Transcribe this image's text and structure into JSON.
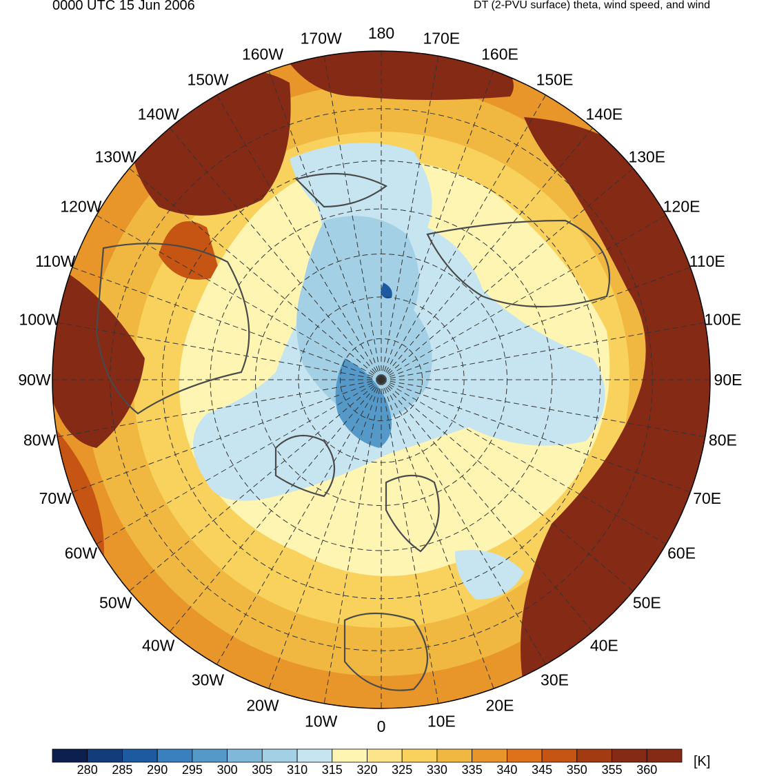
{
  "header": {
    "valid_time": "0000 UTC 15 Jun 2006",
    "field_title": "DT (2-PVU surface) theta, wind speed, and wind"
  },
  "map": {
    "projection": "north-polar-stereographic",
    "longitude_labels": [
      "180",
      "170E",
      "160E",
      "150E",
      "140E",
      "130E",
      "120E",
      "110E",
      "100E",
      "90E",
      "80E",
      "70E",
      "60E",
      "50E",
      "40E",
      "30E",
      "20E",
      "10E",
      "0",
      "10W",
      "20W",
      "30W",
      "40W",
      "50W",
      "60W",
      "70W",
      "80W",
      "90W",
      "100W",
      "110W",
      "120W",
      "130W",
      "140W",
      "150W",
      "160W",
      "170W"
    ],
    "latitude_circles_deg": [
      30,
      40,
      50,
      60,
      70,
      80
    ],
    "meridian_spacing_deg": 10
  },
  "colorbar": {
    "unit": "[K]",
    "tick_labels": [
      "280",
      "285",
      "290",
      "295",
      "300",
      "305",
      "310",
      "315",
      "320",
      "325",
      "330",
      "335",
      "340",
      "345",
      "350",
      "355",
      "360"
    ],
    "colors": [
      "#0c1f4e",
      "#123c7a",
      "#1d5aa0",
      "#3a7fbe",
      "#5599c9",
      "#80b8d9",
      "#a4d0e5",
      "#c6e5f0",
      "#fef5b3",
      "#fde38a",
      "#f8d25c",
      "#f0b840",
      "#e8962a",
      "#dd721a",
      "#c65412",
      "#a23a12",
      "#852a15"
    ]
  }
}
